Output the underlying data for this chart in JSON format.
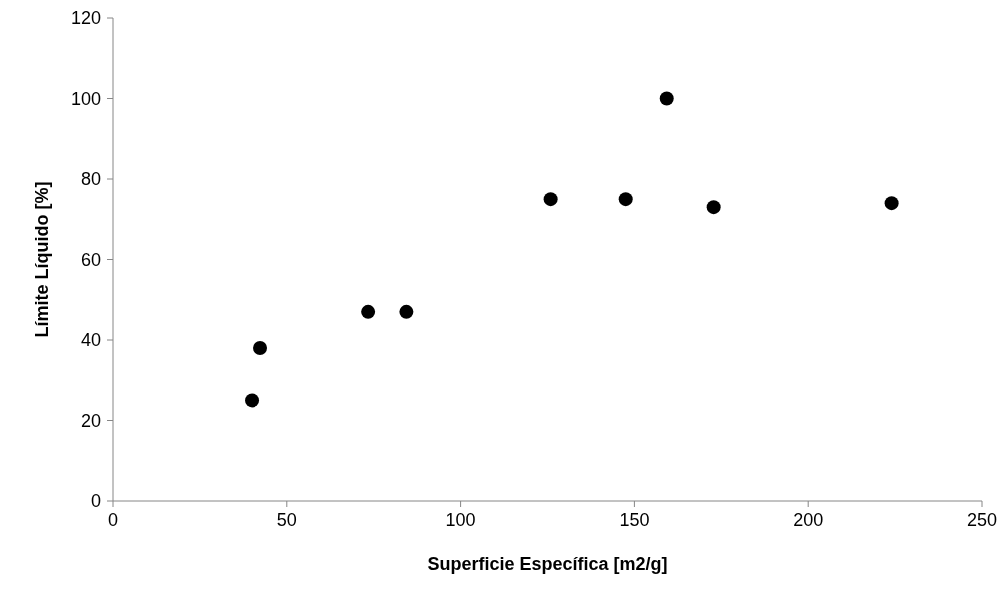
{
  "chart_data": {
    "type": "scatter",
    "xlabel": "Superficie Específica [m2/g]",
    "ylabel": "Límite Líquido [%]",
    "x": [
      40,
      42.3,
      73.4,
      84.4,
      125.9,
      147.5,
      159.3,
      172.8,
      224
    ],
    "values": [
      25,
      38,
      47,
      47,
      75,
      75,
      100,
      73,
      74
    ],
    "color": "#000000",
    "marker": "circle",
    "grid": false,
    "xlim": [
      0,
      250
    ],
    "xticks": [
      0,
      50,
      100,
      150,
      200,
      250
    ],
    "ylim": [
      0,
      120
    ],
    "yticks": [
      0,
      20,
      40,
      60,
      80,
      100,
      120
    ]
  }
}
